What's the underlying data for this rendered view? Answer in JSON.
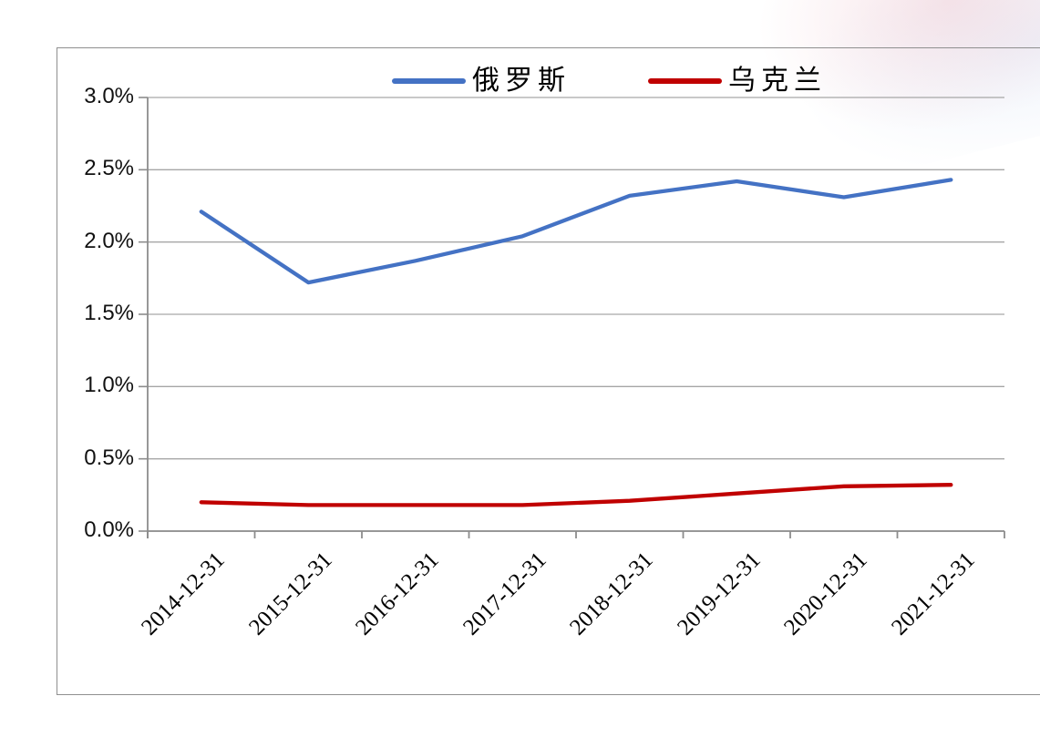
{
  "chart_data": {
    "type": "line",
    "categories": [
      "2014-12-31",
      "2015-12-31",
      "2016-12-31",
      "2017-12-31",
      "2018-12-31",
      "2019-12-31",
      "2020-12-31",
      "2021-12-31"
    ],
    "series": [
      {
        "name": "俄罗斯",
        "color": "#4472C4",
        "values": [
          2.21,
          1.72,
          1.87,
          2.04,
          2.32,
          2.42,
          2.31,
          2.43
        ]
      },
      {
        "name": "乌克兰",
        "color": "#C00000",
        "values": [
          0.2,
          0.18,
          0.18,
          0.18,
          0.21,
          0.26,
          0.31,
          0.32
        ]
      }
    ],
    "title": "",
    "xlabel": "",
    "ylabel": "",
    "ylim": [
      0.0,
      3.0
    ],
    "ytick_labels": [
      "0.0%",
      "0.5%",
      "1.0%",
      "1.5%",
      "2.0%",
      "2.5%",
      "3.0%"
    ],
    "ytick_values": [
      0,
      0.5,
      1.0,
      1.5,
      2.0,
      2.5,
      3.0
    ],
    "grid": true,
    "legend_position": "top-center"
  },
  "colors": {
    "russia_line": "#4472C4",
    "ukraine_line": "#C00000",
    "gridline": "#A6A6A6",
    "axis": "#8C8C8C",
    "frame_border": "#8F8F8F",
    "text": "#000000"
  }
}
